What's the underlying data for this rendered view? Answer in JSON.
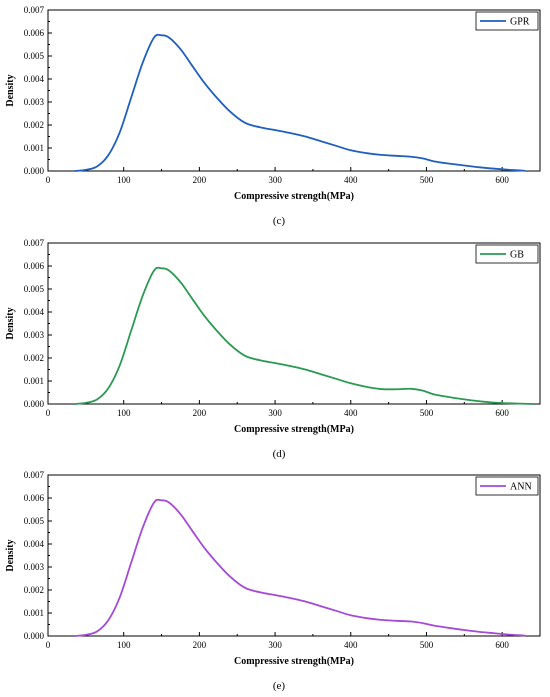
{
  "chart_data": [
    {
      "type": "line",
      "caption": "(c)",
      "xlabel": "Compressive strength(MPa)",
      "ylabel": "Density",
      "xlim": [
        0,
        650
      ],
      "ylim": [
        0,
        0.007
      ],
      "xticks": [
        0,
        100,
        200,
        300,
        400,
        500,
        600
      ],
      "yticks": [
        "0.000",
        "0.001",
        "0.002",
        "0.003",
        "0.004",
        "0.005",
        "0.006",
        "0.007"
      ],
      "grid": false,
      "legend_position": "top-right",
      "series": [
        {
          "name": "GPR",
          "color": "#1f5fbf",
          "x": [
            35,
            50,
            65,
            80,
            95,
            110,
            125,
            140,
            150,
            160,
            175,
            190,
            205,
            220,
            240,
            260,
            280,
            300,
            320,
            340,
            360,
            380,
            400,
            420,
            440,
            460,
            480,
            495,
            510,
            530,
            550,
            570,
            590,
            610,
            630
          ],
          "y": [
            0.0,
            5e-05,
            0.0002,
            0.0007,
            0.0017,
            0.0032,
            0.0047,
            0.0058,
            0.0059,
            0.0058,
            0.0053,
            0.0046,
            0.0039,
            0.0033,
            0.0026,
            0.0021,
            0.0019,
            0.00178,
            0.00165,
            0.0015,
            0.0013,
            0.0011,
            0.0009,
            0.00078,
            0.0007,
            0.00066,
            0.00062,
            0.00055,
            0.00042,
            0.00032,
            0.00024,
            0.00016,
            0.0001,
            5e-05,
            1e-05
          ]
        }
      ]
    },
    {
      "type": "line",
      "caption": "(d)",
      "xlabel": "Compressive strength(MPa)",
      "ylabel": "Density",
      "xlim": [
        0,
        650
      ],
      "ylim": [
        0,
        0.007
      ],
      "xticks": [
        0,
        100,
        200,
        300,
        400,
        500,
        600
      ],
      "yticks": [
        "0.000",
        "0.001",
        "0.002",
        "0.003",
        "0.004",
        "0.005",
        "0.006",
        "0.007"
      ],
      "grid": false,
      "legend_position": "top-right",
      "series": [
        {
          "name": "GB",
          "color": "#2a9a52",
          "x": [
            35,
            50,
            65,
            80,
            95,
            110,
            125,
            140,
            150,
            160,
            175,
            190,
            205,
            220,
            240,
            260,
            280,
            300,
            320,
            340,
            360,
            380,
            400,
            420,
            440,
            460,
            480,
            495,
            510,
            530,
            550,
            570,
            590,
            610,
            640
          ],
          "y": [
            0.0,
            5e-05,
            0.0002,
            0.0007,
            0.0017,
            0.0032,
            0.0047,
            0.0058,
            0.0059,
            0.0058,
            0.0053,
            0.0046,
            0.0039,
            0.0033,
            0.0026,
            0.0021,
            0.0019,
            0.00178,
            0.00165,
            0.0015,
            0.0013,
            0.0011,
            0.0009,
            0.00075,
            0.00065,
            0.00064,
            0.00066,
            0.00058,
            0.00042,
            0.0003,
            0.0002,
            0.00012,
            6e-05,
            3e-05,
            0.0
          ]
        }
      ]
    },
    {
      "type": "line",
      "caption": "(e)",
      "xlabel": "Compressive strength(MPa)",
      "ylabel": "Density",
      "xlim": [
        0,
        650
      ],
      "ylim": [
        0,
        0.007
      ],
      "xticks": [
        0,
        100,
        200,
        300,
        400,
        500,
        600
      ],
      "yticks": [
        "0.000",
        "0.001",
        "0.002",
        "0.003",
        "0.004",
        "0.005",
        "0.006",
        "0.007"
      ],
      "grid": false,
      "legend_position": "top-right",
      "series": [
        {
          "name": "ANN",
          "color": "#a54ad6",
          "x": [
            35,
            50,
            65,
            80,
            95,
            110,
            125,
            140,
            150,
            160,
            175,
            190,
            205,
            220,
            240,
            260,
            280,
            300,
            320,
            340,
            360,
            380,
            400,
            420,
            440,
            460,
            480,
            495,
            510,
            530,
            550,
            570,
            590,
            610,
            630
          ],
          "y": [
            0.0,
            5e-05,
            0.0002,
            0.0007,
            0.0017,
            0.0032,
            0.0047,
            0.0058,
            0.0059,
            0.0058,
            0.0053,
            0.0046,
            0.0039,
            0.0033,
            0.0026,
            0.0021,
            0.0019,
            0.00178,
            0.00165,
            0.0015,
            0.0013,
            0.0011,
            0.0009,
            0.00078,
            0.0007,
            0.00066,
            0.00063,
            0.00056,
            0.00045,
            0.00035,
            0.00026,
            0.00018,
            0.00012,
            6e-05,
            2e-05
          ]
        }
      ]
    }
  ]
}
